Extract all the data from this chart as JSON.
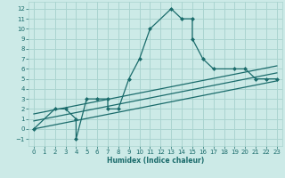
{
  "title": "",
  "xlabel": "Humidex (Indice chaleur)",
  "bg_color": "#cceae7",
  "grid_color": "#aad4d0",
  "line_color": "#1a6b6b",
  "xlim": [
    -0.5,
    23.5
  ],
  "ylim": [
    -1.7,
    12.7
  ],
  "xticks": [
    0,
    1,
    2,
    3,
    4,
    5,
    6,
    7,
    8,
    9,
    10,
    11,
    12,
    13,
    14,
    15,
    16,
    17,
    18,
    19,
    20,
    21,
    22,
    23
  ],
  "yticks": [
    -1,
    0,
    1,
    2,
    3,
    4,
    5,
    6,
    7,
    8,
    9,
    10,
    11,
    12
  ],
  "main_x": [
    0,
    2,
    3,
    4,
    4,
    5,
    6,
    7,
    7,
    8,
    9,
    10,
    11,
    13,
    14,
    15,
    15,
    16,
    17,
    19,
    20,
    21,
    22,
    23
  ],
  "main_y": [
    0,
    2,
    2,
    1,
    -1,
    3,
    3,
    3,
    2,
    2,
    5,
    7,
    10,
    12,
    11,
    11,
    9,
    7,
    6,
    6,
    6,
    5,
    5,
    5
  ],
  "trend1_x": [
    0,
    23
  ],
  "trend1_y": [
    0.0,
    4.8
  ],
  "trend2_x": [
    0,
    23
  ],
  "trend2_y": [
    1.5,
    6.3
  ],
  "trend3_x": [
    0,
    23
  ],
  "trend3_y": [
    0.8,
    5.6
  ]
}
